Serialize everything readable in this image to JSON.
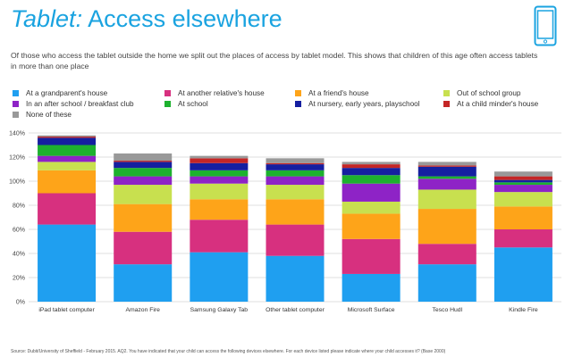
{
  "header": {
    "title_prefix": "Tablet:",
    "title_rest": " Access elsewhere",
    "subtitle": "Of those who access the tablet outside the home we split out the places of access by tablet model. This shows that children of this age often access tablets in more than one place"
  },
  "icons": {
    "tablet": "tablet-icon"
  },
  "colors": {
    "accent": "#1aa3e0"
  },
  "chart_data": {
    "type": "bar",
    "stacked": true,
    "categories": [
      "iPad tablet computer",
      "Amazon Fire",
      "Samsung Galaxy Tab",
      "Other tablet computer",
      "Microsoft Surface",
      "Tesco Hudl",
      "Kindle Fire"
    ],
    "ylim": [
      0,
      140
    ],
    "yticks": [
      0,
      20,
      40,
      60,
      80,
      100,
      120,
      140
    ],
    "ytick_labels": [
      "0%",
      "20%",
      "40%",
      "60%",
      "80%",
      "100%",
      "120%",
      "140%"
    ],
    "grid": true,
    "legend_position": "top",
    "series": [
      {
        "name": "At a grandparent's house",
        "color": "#1f9ff0",
        "values": [
          64,
          31,
          41,
          38,
          23,
          31,
          45
        ]
      },
      {
        "name": "At another relative's house",
        "color": "#d7307f",
        "values": [
          26,
          27,
          27,
          26,
          29,
          17,
          15
        ]
      },
      {
        "name": "At a friend's house",
        "color": "#fea419",
        "values": [
          19,
          23,
          17,
          21,
          21,
          29,
          19
        ]
      },
      {
        "name": "Out of school group",
        "color": "#c8e04f",
        "values": [
          7,
          16,
          13,
          12,
          10,
          16,
          12
        ]
      },
      {
        "name": "In an after school / breakfast club",
        "color": "#8e23c6",
        "values": [
          5,
          7,
          6,
          7,
          15,
          9,
          6
        ]
      },
      {
        "name": "At school",
        "color": "#1db12e",
        "values": [
          9,
          7,
          5,
          5,
          7,
          2,
          2
        ]
      },
      {
        "name": "At nursery, early years, playschool",
        "color": "#151fa0",
        "values": [
          6,
          5,
          6,
          5,
          6,
          8,
          2
        ]
      },
      {
        "name": "At a child minder's house",
        "color": "#c42626",
        "values": [
          1,
          1,
          4,
          1,
          3,
          1,
          3
        ]
      },
      {
        "name": "None of these",
        "color": "#999999",
        "values": [
          1,
          6,
          2,
          4,
          2,
          3,
          4
        ]
      }
    ]
  },
  "footer": {
    "source": "Source: Dubit/University of Sheffield - February 2015. AQ2. You have indicated that your child can access the following devices elsewhere. For each device listed please indicate where your child accesses it? (Base 2000)"
  }
}
